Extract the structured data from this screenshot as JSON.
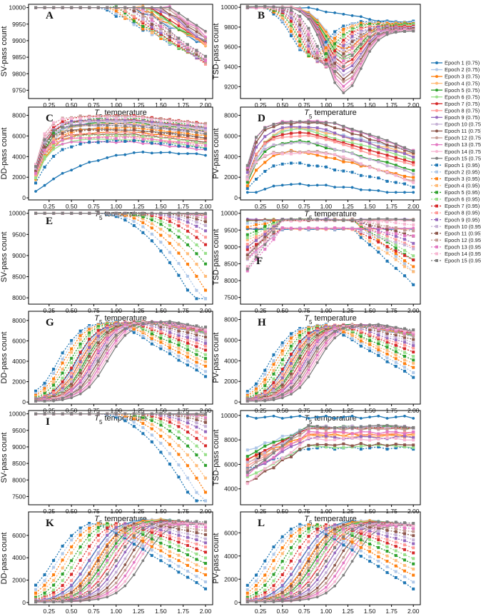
{
  "figure": {
    "legend_title": ""
  },
  "legend": {
    "series": [
      {
        "name": "Epoch 1 (0.75)",
        "color": "#1f77b4",
        "marker": "circle",
        "dash": false
      },
      {
        "name": "Epoch 2 (0.75)",
        "color": "#aec7e8",
        "marker": "circle",
        "dash": false
      },
      {
        "name": "Epoch 3 (0.75)",
        "color": "#ff7f0e",
        "marker": "circle",
        "dash": false
      },
      {
        "name": "Epoch 4 (0.75)",
        "color": "#ffbb78",
        "marker": "circle",
        "dash": false
      },
      {
        "name": "Epoch 5 (0.75)",
        "color": "#2ca02c",
        "marker": "circle",
        "dash": false
      },
      {
        "name": "Epoch 6 (0.75)",
        "color": "#98df8a",
        "marker": "circle",
        "dash": false
      },
      {
        "name": "Epoch 7 (0.75)",
        "color": "#d62728",
        "marker": "circle",
        "dash": false
      },
      {
        "name": "Epoch 8 (0.75)",
        "color": "#ff9896",
        "marker": "circle",
        "dash": false
      },
      {
        "name": "Epoch 9 (0.75)",
        "color": "#9467bd",
        "marker": "circle",
        "dash": false
      },
      {
        "name": "Epoch 10 (0.75)",
        "color": "#c5b0d5",
        "marker": "circle",
        "dash": false
      },
      {
        "name": "Epoch 11 (0.75)",
        "color": "#8c564b",
        "marker": "circle",
        "dash": false
      },
      {
        "name": "Epoch 12 (0.75)",
        "color": "#c49c94",
        "marker": "circle",
        "dash": false
      },
      {
        "name": "Epoch 13 (0.75)",
        "color": "#e377c2",
        "marker": "circle",
        "dash": false
      },
      {
        "name": "Epoch 14 (0.75)",
        "color": "#f7b6d2",
        "marker": "circle",
        "dash": false
      },
      {
        "name": "Epoch 15 (0.75)",
        "color": "#7f7f7f",
        "marker": "circle",
        "dash": false
      },
      {
        "name": "Epoch 1 (0.95)",
        "color": "#1f77b4",
        "marker": "square",
        "dash": true
      },
      {
        "name": "Epoch 2 (0.95)",
        "color": "#aec7e8",
        "marker": "square",
        "dash": true
      },
      {
        "name": "Epoch 3 (0.95)",
        "color": "#ff7f0e",
        "marker": "square",
        "dash": true
      },
      {
        "name": "Epoch 4 (0.95)",
        "color": "#ffbb78",
        "marker": "square",
        "dash": true
      },
      {
        "name": "Epoch 5 (0.95)",
        "color": "#2ca02c",
        "marker": "square",
        "dash": true
      },
      {
        "name": "Epoch 6 (0.95)",
        "color": "#98df8a",
        "marker": "square",
        "dash": true
      },
      {
        "name": "Epoch 7 (0.95)",
        "color": "#d62728",
        "marker": "square",
        "dash": true
      },
      {
        "name": "Epoch 8 (0.95)",
        "color": "#ff9896",
        "marker": "square",
        "dash": true
      },
      {
        "name": "Epoch 9 (0.95)",
        "color": "#9467bd",
        "marker": "square",
        "dash": true
      },
      {
        "name": "Epoch 10 (0.95)",
        "color": "#c5b0d5",
        "marker": "square",
        "dash": true
      },
      {
        "name": "Epoch 11 (0.95)",
        "color": "#8c564b",
        "marker": "square",
        "dash": true
      },
      {
        "name": "Epoch 12 (0.95)",
        "color": "#c49c94",
        "marker": "square",
        "dash": true
      },
      {
        "name": "Epoch 13 (0.95)",
        "color": "#e377c2",
        "marker": "square",
        "dash": true
      },
      {
        "name": "Epoch 14 (0.95)",
        "color": "#f7b6d2",
        "marker": "square",
        "dash": true
      },
      {
        "name": "Epoch 15 (0.95)",
        "color": "#7f7f7f",
        "marker": "square",
        "dash": true
      }
    ]
  },
  "chart_data": [
    {
      "id": "A",
      "type": "line",
      "xlabel": "T5 temperature",
      "ylabel": "SV-pass count",
      "x": [
        0.1,
        0.2,
        0.3,
        0.4,
        0.5,
        0.6,
        0.7,
        0.8,
        0.9,
        1.0,
        1.1,
        1.2,
        1.3,
        1.4,
        1.5,
        1.6,
        1.7,
        1.8,
        1.9,
        2.0
      ],
      "xticks": [
        "0.25",
        "0.50",
        "0.75",
        "1.00",
        "1.25",
        "1.50",
        "1.75",
        "2.00"
      ],
      "yticks": [
        9750,
        9800,
        9850,
        9900,
        9950,
        10000
      ],
      "ylim": [
        9725,
        10010
      ],
      "shape": "sv_early",
      "ymax": 10000,
      "ymin": 9745
    },
    {
      "id": "B",
      "type": "line",
      "xlabel": "T5 temperature",
      "ylabel": "TSD-pass count",
      "x": [
        0.1,
        0.2,
        0.3,
        0.4,
        0.5,
        0.6,
        0.7,
        0.8,
        0.9,
        1.0,
        1.1,
        1.2,
        1.3,
        1.4,
        1.5,
        1.6,
        1.7,
        1.8,
        1.9,
        2.0
      ],
      "xticks": [
        "0.25",
        "0.50",
        "0.75",
        "1.00",
        "1.25",
        "1.50",
        "1.75",
        "2.00"
      ],
      "yticks": [
        9200,
        9400,
        9600,
        9800,
        10000
      ],
      "ylim": [
        9080,
        10030
      ],
      "shape": "tsd_dip",
      "ymax": 10000,
      "ymin": 9130
    },
    {
      "id": "C",
      "type": "line",
      "xlabel": "T5 temperature",
      "ylabel": "DD-pass count",
      "x": [
        0.1,
        0.2,
        0.3,
        0.4,
        0.5,
        0.6,
        0.7,
        0.8,
        0.9,
        1.0,
        1.1,
        1.2,
        1.3,
        1.4,
        1.5,
        1.6,
        1.7,
        1.8,
        1.9,
        2.0
      ],
      "xticks": [
        "0.25",
        "0.50",
        "0.75",
        "1.00",
        "1.25",
        "1.50",
        "1.75",
        "2.00"
      ],
      "yticks": [
        0,
        2000,
        4000,
        6000,
        8000
      ],
      "ylim": [
        -200,
        8800
      ],
      "shape": "rise_early",
      "ymax": 8200,
      "ymin": 200
    },
    {
      "id": "D",
      "type": "line",
      "xlabel": "T5 temperature",
      "ylabel": "PV-pass count",
      "x": [
        0.1,
        0.2,
        0.3,
        0.4,
        0.5,
        0.6,
        0.7,
        0.8,
        0.9,
        1.0,
        1.1,
        1.2,
        1.3,
        1.4,
        1.5,
        1.6,
        1.7,
        1.8,
        1.9,
        2.0
      ],
      "xticks": [
        "0.25",
        "0.50",
        "0.75",
        "1.00",
        "1.25",
        "1.50",
        "1.75",
        "2.00"
      ],
      "yticks": [
        0,
        2000,
        4000,
        6000,
        8000
      ],
      "ylim": [
        -200,
        8800
      ],
      "shape": "pv_early",
      "ymax": 7800,
      "ymin": 150
    },
    {
      "id": "E",
      "type": "line",
      "xlabel": "T5 temperature",
      "ylabel": "SV-pass count",
      "x": [
        0.1,
        0.2,
        0.3,
        0.4,
        0.5,
        0.6,
        0.7,
        0.8,
        0.9,
        1.0,
        1.1,
        1.2,
        1.3,
        1.4,
        1.5,
        1.6,
        1.7,
        1.8,
        1.9,
        2.0
      ],
      "xticks": [
        "0.25",
        "0.50",
        "0.75",
        "1.00",
        "1.25",
        "1.50",
        "1.75",
        "2.00"
      ],
      "yticks": [
        8000,
        8500,
        9000,
        9500,
        10000
      ],
      "ylim": [
        7850,
        10080
      ],
      "shape": "sv_late",
      "ymax": 10000,
      "ymin": 7980
    },
    {
      "id": "F",
      "type": "line",
      "xlabel": "T5 temperature",
      "ylabel": "TSD-pass count",
      "x": [
        0.1,
        0.2,
        0.3,
        0.4,
        0.5,
        0.6,
        0.7,
        0.8,
        0.9,
        1.0,
        1.1,
        1.2,
        1.3,
        1.4,
        1.5,
        1.6,
        1.7,
        1.8,
        1.9,
        2.0
      ],
      "xticks": [
        "0.25",
        "0.50",
        "0.75",
        "1.00",
        "1.25",
        "1.50",
        "1.75",
        "2.00"
      ],
      "yticks": [
        7500,
        8000,
        8500,
        9000,
        9500,
        10000
      ],
      "ylim": [
        7300,
        10100
      ],
      "shape": "tsd_mid",
      "ymax": 10000,
      "ymin": 7400
    },
    {
      "id": "G",
      "type": "line",
      "xlabel": "T5 temperature",
      "ylabel": "DD-pass count",
      "x": [
        0.1,
        0.2,
        0.3,
        0.4,
        0.5,
        0.6,
        0.7,
        0.8,
        0.9,
        1.0,
        1.1,
        1.2,
        1.3,
        1.4,
        1.5,
        1.6,
        1.7,
        1.8,
        1.9,
        2.0
      ],
      "xticks": [
        "0.25",
        "0.50",
        "0.75",
        "1.00",
        "1.25",
        "1.50",
        "1.75",
        "2.00"
      ],
      "yticks": [
        0,
        2000,
        4000,
        6000,
        8000
      ],
      "ylim": [
        -200,
        8900
      ],
      "shape": "rise_peak",
      "ymax": 8300,
      "ymin": 100
    },
    {
      "id": "H",
      "type": "line",
      "xlabel": "T5 temperature",
      "ylabel": "PV-pass count",
      "x": [
        0.1,
        0.2,
        0.3,
        0.4,
        0.5,
        0.6,
        0.7,
        0.8,
        0.9,
        1.0,
        1.1,
        1.2,
        1.3,
        1.4,
        1.5,
        1.6,
        1.7,
        1.8,
        1.9,
        2.0
      ],
      "xticks": [
        "0.25",
        "0.50",
        "0.75",
        "1.00",
        "1.25",
        "1.50",
        "1.75",
        "2.00"
      ],
      "yticks": [
        0,
        2000,
        4000,
        6000,
        8000
      ],
      "ylim": [
        -200,
        8800
      ],
      "shape": "rise_peak",
      "ymax": 7900,
      "ymin": 100
    },
    {
      "id": "I",
      "type": "line",
      "xlabel": "T5 temperature",
      "ylabel": "SV-pass count",
      "x": [
        0.1,
        0.2,
        0.3,
        0.4,
        0.5,
        0.6,
        0.7,
        0.8,
        0.9,
        1.0,
        1.1,
        1.2,
        1.3,
        1.4,
        1.5,
        1.6,
        1.7,
        1.8,
        1.9,
        2.0
      ],
      "xticks": [
        "0.25",
        "0.50",
        "0.75",
        "1.00",
        "1.25",
        "1.50",
        "1.75",
        "2.00"
      ],
      "yticks": [
        7500,
        8000,
        8500,
        9000,
        9500,
        10000
      ],
      "ylim": [
        7250,
        10100
      ],
      "shape": "sv_late",
      "ymax": 10000,
      "ymin": 7370
    },
    {
      "id": "J",
      "type": "line",
      "xlabel": "T5 temperature",
      "ylabel": "TSD-pass count",
      "x": [
        0.1,
        0.2,
        0.3,
        0.4,
        0.5,
        0.6,
        0.7,
        0.8,
        0.9,
        1.0,
        1.1,
        1.2,
        1.3,
        1.4,
        1.5,
        1.6,
        1.7,
        1.8,
        1.9,
        2.0
      ],
      "xticks": [
        "0.25",
        "0.50",
        "0.75",
        "1.00",
        "1.25",
        "1.50",
        "1.75",
        "2.00"
      ],
      "yticks": [
        4000,
        6000,
        8000,
        10000
      ],
      "ylim": [
        2700,
        10400
      ],
      "shape": "tsd_low",
      "ymax": 10000,
      "ymin": 3000
    },
    {
      "id": "K",
      "type": "line",
      "xlabel": "T5 temperature",
      "ylabel": "DD-pass count",
      "x": [
        0.1,
        0.2,
        0.3,
        0.4,
        0.5,
        0.6,
        0.7,
        0.8,
        0.9,
        1.0,
        1.1,
        1.2,
        1.3,
        1.4,
        1.5,
        1.6,
        1.7,
        1.8,
        1.9,
        2.0
      ],
      "xticks": [
        "0.25",
        "0.50",
        "0.75",
        "1.00",
        "1.25",
        "1.50",
        "1.75",
        "2.00"
      ],
      "yticks": [
        0,
        2000,
        4000,
        6000
      ],
      "ylim": [
        -200,
        8100
      ],
      "shape": "rise_late",
      "ymax": 7700,
      "ymin": 50
    },
    {
      "id": "L",
      "type": "line",
      "xlabel": "T5 temperature",
      "ylabel": "PV-pass count",
      "x": [
        0.1,
        0.2,
        0.3,
        0.4,
        0.5,
        0.6,
        0.7,
        0.8,
        0.9,
        1.0,
        1.1,
        1.2,
        1.3,
        1.4,
        1.5,
        1.6,
        1.7,
        1.8,
        1.9,
        2.0
      ],
      "xticks": [
        "0.25",
        "0.50",
        "0.75",
        "1.00",
        "1.25",
        "1.50",
        "1.75",
        "2.00"
      ],
      "yticks": [
        0,
        2000,
        4000,
        6000
      ],
      "ylim": [
        -200,
        7800
      ],
      "shape": "rise_late",
      "ymax": 7300,
      "ymin": 50
    }
  ]
}
